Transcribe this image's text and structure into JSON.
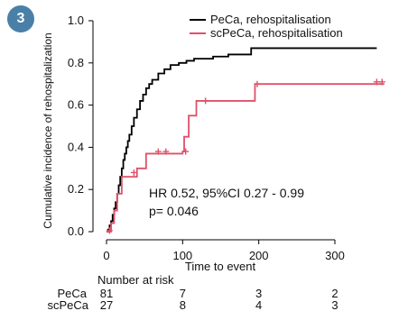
{
  "badge": "3",
  "chart_data": {
    "type": "line",
    "xlabel": "Time to event",
    "ylabel": "Cumulative incidence of rehospitalization",
    "xlim": [
      -10,
      370
    ],
    "ylim": [
      0,
      1.0
    ],
    "x_ticks": [
      0,
      100,
      200,
      300
    ],
    "x_tick_labels": [
      "0",
      "100",
      "200",
      "300"
    ],
    "y_ticks": [
      0.0,
      0.2,
      0.4,
      0.6,
      0.8,
      1.0
    ],
    "y_tick_labels": [
      "0.0",
      "0.2",
      "0.4",
      "0.6",
      "0.8",
      "1.0"
    ],
    "legend_position": "top-right",
    "series": [
      {
        "name": "PeCa, rehospitalisation",
        "color": "#000000",
        "steps": [
          [
            0,
            0
          ],
          [
            2,
            0.01
          ],
          [
            4,
            0.03
          ],
          [
            6,
            0.05
          ],
          [
            8,
            0.08
          ],
          [
            10,
            0.11
          ],
          [
            12,
            0.14
          ],
          [
            14,
            0.18
          ],
          [
            16,
            0.22
          ],
          [
            18,
            0.26
          ],
          [
            20,
            0.3
          ],
          [
            22,
            0.34
          ],
          [
            24,
            0.37
          ],
          [
            26,
            0.4
          ],
          [
            28,
            0.43
          ],
          [
            30,
            0.46
          ],
          [
            33,
            0.5
          ],
          [
            36,
            0.54
          ],
          [
            40,
            0.58
          ],
          [
            44,
            0.62
          ],
          [
            48,
            0.65
          ],
          [
            52,
            0.68
          ],
          [
            56,
            0.7
          ],
          [
            60,
            0.72
          ],
          [
            68,
            0.75
          ],
          [
            76,
            0.77
          ],
          [
            84,
            0.79
          ],
          [
            95,
            0.8
          ],
          [
            105,
            0.81
          ],
          [
            115,
            0.82
          ],
          [
            140,
            0.83
          ],
          [
            160,
            0.84
          ],
          [
            190,
            0.87
          ],
          [
            355,
            0.87
          ]
        ],
        "censored": []
      },
      {
        "name": "scPeCa, rehospitalisation",
        "color": "#e0506a",
        "steps": [
          [
            0,
            0
          ],
          [
            6,
            0.04
          ],
          [
            10,
            0.1
          ],
          [
            14,
            0.18
          ],
          [
            20,
            0.26
          ],
          [
            40,
            0.3
          ],
          [
            52,
            0.37
          ],
          [
            100,
            0.38
          ],
          [
            102,
            0.45
          ],
          [
            108,
            0.55
          ],
          [
            118,
            0.62
          ],
          [
            195,
            0.7
          ],
          [
            365,
            0.7
          ]
        ],
        "censored": [
          [
            4,
            0.005
          ],
          [
            36,
            0.28
          ],
          [
            68,
            0.38
          ],
          [
            78,
            0.38
          ],
          [
            104,
            0.38
          ],
          [
            130,
            0.62
          ],
          [
            198,
            0.7
          ],
          [
            355,
            0.71
          ],
          [
            362,
            0.71
          ]
        ]
      }
    ],
    "annotations": [
      {
        "text": "HR 0.52, 95%CI 0.27 - 0.99"
      },
      {
        "text": "p= 0.046"
      }
    ],
    "risk_table": {
      "title": "Number at risk",
      "times": [
        0,
        100,
        200,
        300
      ],
      "rows": [
        {
          "label": "PeCa",
          "values": [
            "81",
            "7",
            "3",
            "2"
          ]
        },
        {
          "label": "scPeCa",
          "values": [
            "27",
            "8",
            "4",
            "3"
          ]
        }
      ]
    }
  }
}
